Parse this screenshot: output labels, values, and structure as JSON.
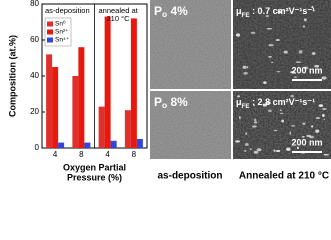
{
  "chart_data": {
    "type": "bar",
    "ylabel": "Composition (at.%)",
    "xlabel": [
      "Oxygen Partial",
      "Pressure (%)"
    ],
    "annotations": [
      "as-deposition",
      "annealed at",
      "210 °C"
    ],
    "categories": [
      "4",
      "8",
      "4",
      "8"
    ],
    "series": [
      {
        "name": "Sn⁰",
        "color": "#e0302c",
        "values": [
          52,
          40,
          23,
          21
        ]
      },
      {
        "name": "Sn²⁺",
        "color": "#e8180f",
        "values": [
          45,
          56,
          73,
          72
        ]
      },
      {
        "name": "Sn⁴⁺",
        "color": "#3344dd",
        "values": [
          3,
          3,
          4,
          5
        ]
      }
    ],
    "ylim": [
      0,
      80
    ],
    "yticks": [
      0,
      20,
      40,
      60,
      80
    ],
    "legend": "upper left"
  },
  "images": {
    "panels": [
      {
        "symbol": "P",
        "sub": "o",
        "text": " 4%"
      },
      {
        "symbol": "μ",
        "sub": "FE",
        "text": " : 0.7 cm²V⁻¹s⁻¹",
        "scale": "200 nm"
      },
      {
        "symbol": "P",
        "sub": "o",
        "text": " 8%"
      },
      {
        "symbol": "μ",
        "sub": "FE",
        "text": " : 2.8 cm²V⁻¹s⁻¹",
        "scale": "200 nm"
      }
    ],
    "captions": [
      "as-deposition",
      "Annealed at 210 °C"
    ]
  }
}
